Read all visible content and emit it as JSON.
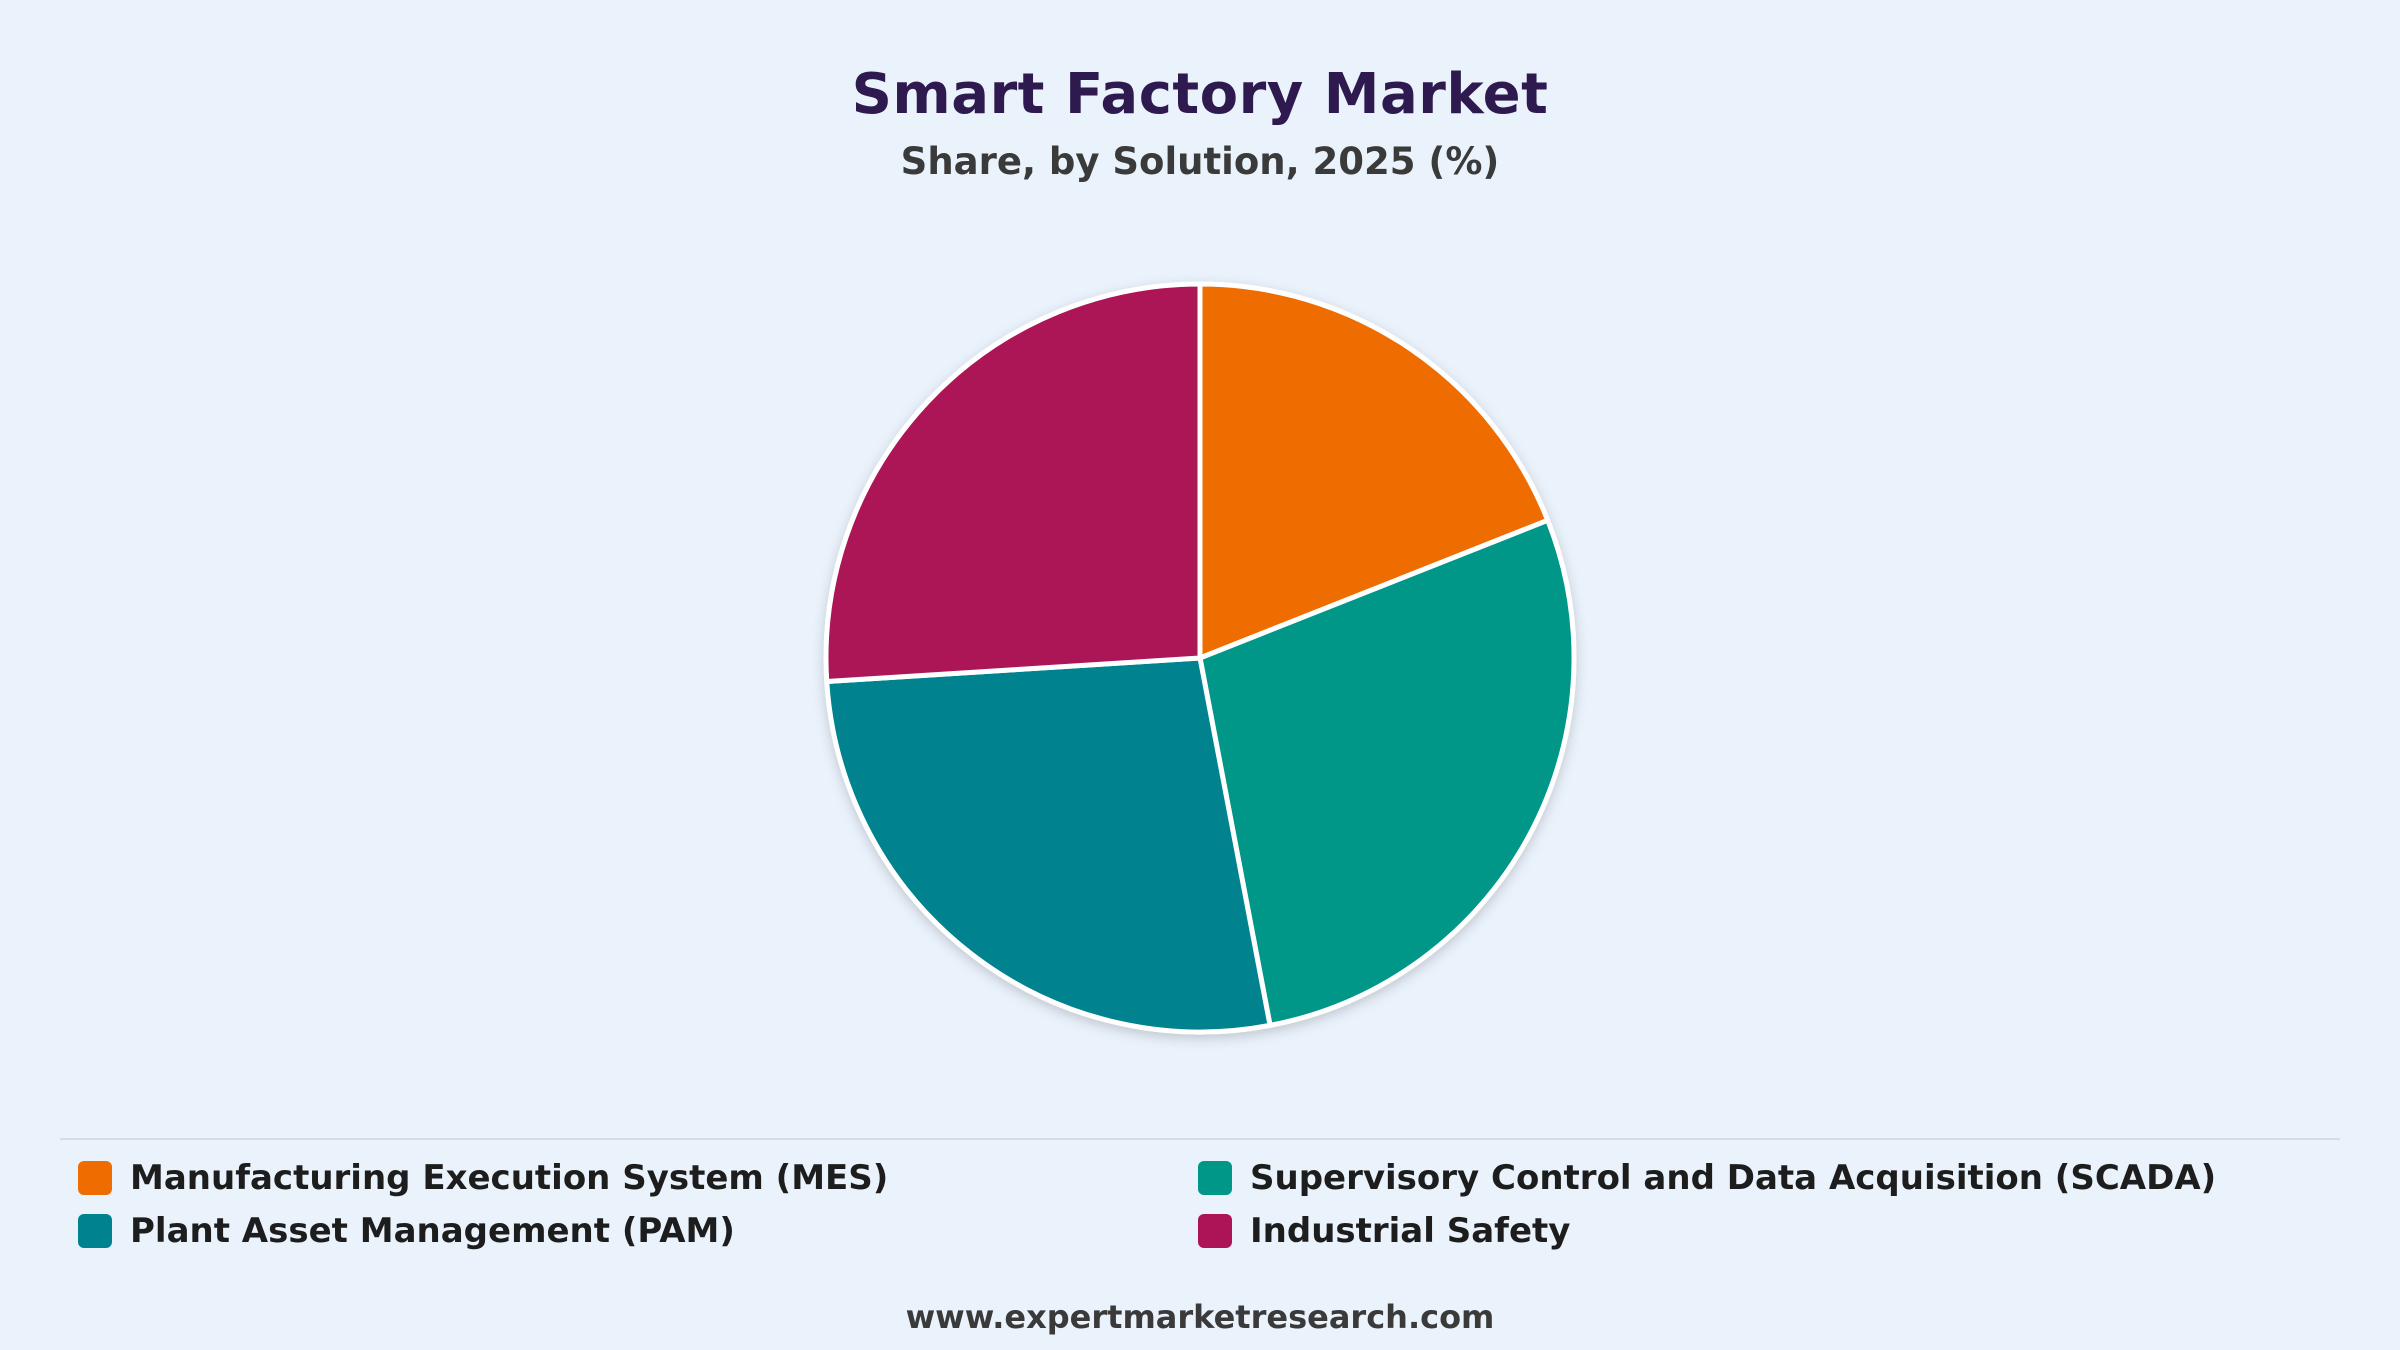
{
  "chart_data": {
    "type": "pie",
    "title": "Smart Factory Market",
    "subtitle": "Share, by Solution, 2025 (%)",
    "slices": [
      {
        "label": "Manufacturing Execution System (MES)",
        "value": 19,
        "color": "#ef6c00"
      },
      {
        "label": "Supervisory Control and Data Acquisition (SCADA)",
        "value": 28,
        "color": "#009688"
      },
      {
        "label": "Plant Asset Management (PAM)",
        "value": 27,
        "color": "#00838f"
      },
      {
        "label": "Industrial Safety",
        "value": 26,
        "color": "#ad1457"
      }
    ],
    "legend_position": "bottom"
  },
  "legend": {
    "items": [
      {
        "label": "Manufacturing Execution System (MES)",
        "color": "#ef6c00"
      },
      {
        "label": "Supervisory Control and Data Acquisition (SCADA)",
        "color": "#009688"
      },
      {
        "label": "Plant Asset Management (PAM)",
        "color": "#00838f"
      },
      {
        "label": "Industrial Safety",
        "color": "#ad1457"
      }
    ]
  },
  "footer": {
    "source": "www.expertmarketresearch.com"
  },
  "colors": {
    "background": "#eaf2fc",
    "title": "#2e1a4f",
    "slice_border": "#ffffff"
  }
}
